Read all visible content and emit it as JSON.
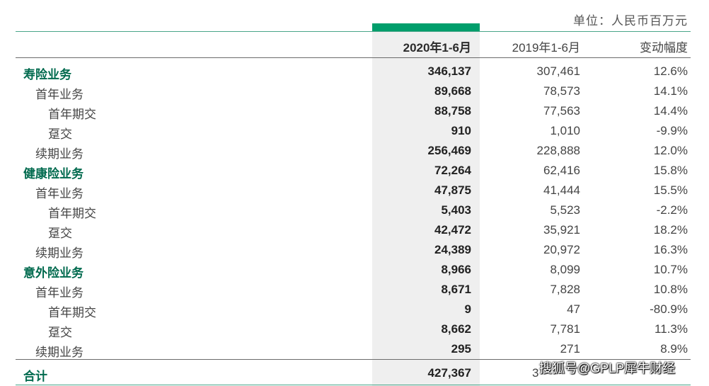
{
  "unit_label": "单位：人民币百万元",
  "columns": {
    "current": "2020年1-6月",
    "prior": "2019年1-6月",
    "change": "变动幅度"
  },
  "rows": [
    {
      "label": "寿险业务",
      "level": 0,
      "current": "346,137",
      "prior": "307,461",
      "change": "12.6%"
    },
    {
      "label": "首年业务",
      "level": 1,
      "current": "89,668",
      "prior": "78,573",
      "change": "14.1%"
    },
    {
      "label": "首年期交",
      "level": 2,
      "current": "88,758",
      "prior": "77,563",
      "change": "14.4%"
    },
    {
      "label": "趸交",
      "level": 2,
      "current": "910",
      "prior": "1,010",
      "change": "-9.9%"
    },
    {
      "label": "续期业务",
      "level": 1,
      "current": "256,469",
      "prior": "228,888",
      "change": "12.0%"
    },
    {
      "label": "健康险业务",
      "level": 0,
      "current": "72,264",
      "prior": "62,416",
      "change": "15.8%"
    },
    {
      "label": "首年业务",
      "level": 1,
      "current": "47,875",
      "prior": "41,444",
      "change": "15.5%"
    },
    {
      "label": "首年期交",
      "level": 2,
      "current": "5,403",
      "prior": "5,523",
      "change": "-2.2%"
    },
    {
      "label": "趸交",
      "level": 2,
      "current": "42,472",
      "prior": "35,921",
      "change": "18.2%"
    },
    {
      "label": "续期业务",
      "level": 1,
      "current": "24,389",
      "prior": "20,972",
      "change": "16.3%"
    },
    {
      "label": "意外险业务",
      "level": 0,
      "current": "8,966",
      "prior": "8,099",
      "change": "10.7%"
    },
    {
      "label": "首年业务",
      "level": 1,
      "current": "8,671",
      "prior": "7,828",
      "change": "10.8%"
    },
    {
      "label": "首年期交",
      "level": 2,
      "current": "9",
      "prior": "47",
      "change": "-80.9%"
    },
    {
      "label": "趸交",
      "level": 2,
      "current": "8,662",
      "prior": "7,781",
      "change": "11.3%"
    },
    {
      "label": "续期业务",
      "level": 1,
      "current": "295",
      "prior": "271",
      "change": "8.9%"
    }
  ],
  "total": {
    "label": "合计",
    "current": "427,367",
    "prior_visible": "3"
  },
  "watermark": "搜狐号@GPLP犀牛财经",
  "colors": {
    "accent_green": "#009e6b",
    "label_green": "#006a4e",
    "highlight_bg": "#efefef"
  }
}
